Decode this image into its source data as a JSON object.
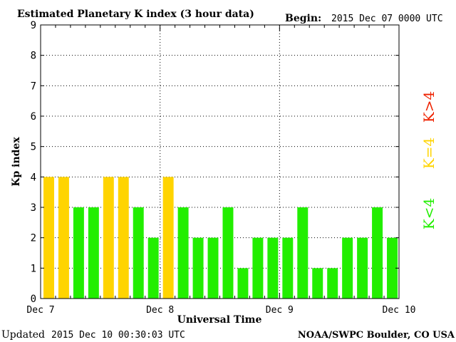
{
  "chart_data": {
    "type": "bar",
    "title": "Estimated Planetary K index (3 hour data)",
    "begin_label": "Begin:",
    "begin_value": "2015 Dec 07 0000 UTC",
    "xlabel": "Universal Time",
    "ylabel": "Kp index",
    "ylim": [
      0,
      9
    ],
    "yticks": [
      "0",
      "1",
      "2",
      "3",
      "4",
      "5",
      "6",
      "7",
      "8",
      "9"
    ],
    "xtick_labels": [
      "Dec 7",
      "Dec 8",
      "Dec 9",
      "Dec 10"
    ],
    "bins_per_day": 8,
    "grid": true,
    "values": [
      4,
      4,
      3,
      3,
      4,
      4,
      3,
      2,
      4,
      3,
      2,
      2,
      3,
      1,
      2,
      2,
      2,
      3,
      1,
      1,
      2,
      2,
      3,
      2
    ],
    "legend": [
      {
        "label": "K<4",
        "color": "#22ee00"
      },
      {
        "label": "K=4",
        "color": "#ffd400"
      },
      {
        "label": "K>4",
        "color": "#ee2200"
      }
    ]
  },
  "footer": {
    "updated_label": "Updated",
    "updated_value": "2015 Dec 10 00:30:03 UTC",
    "source": "NOAA/SWPC Boulder, CO USA"
  }
}
